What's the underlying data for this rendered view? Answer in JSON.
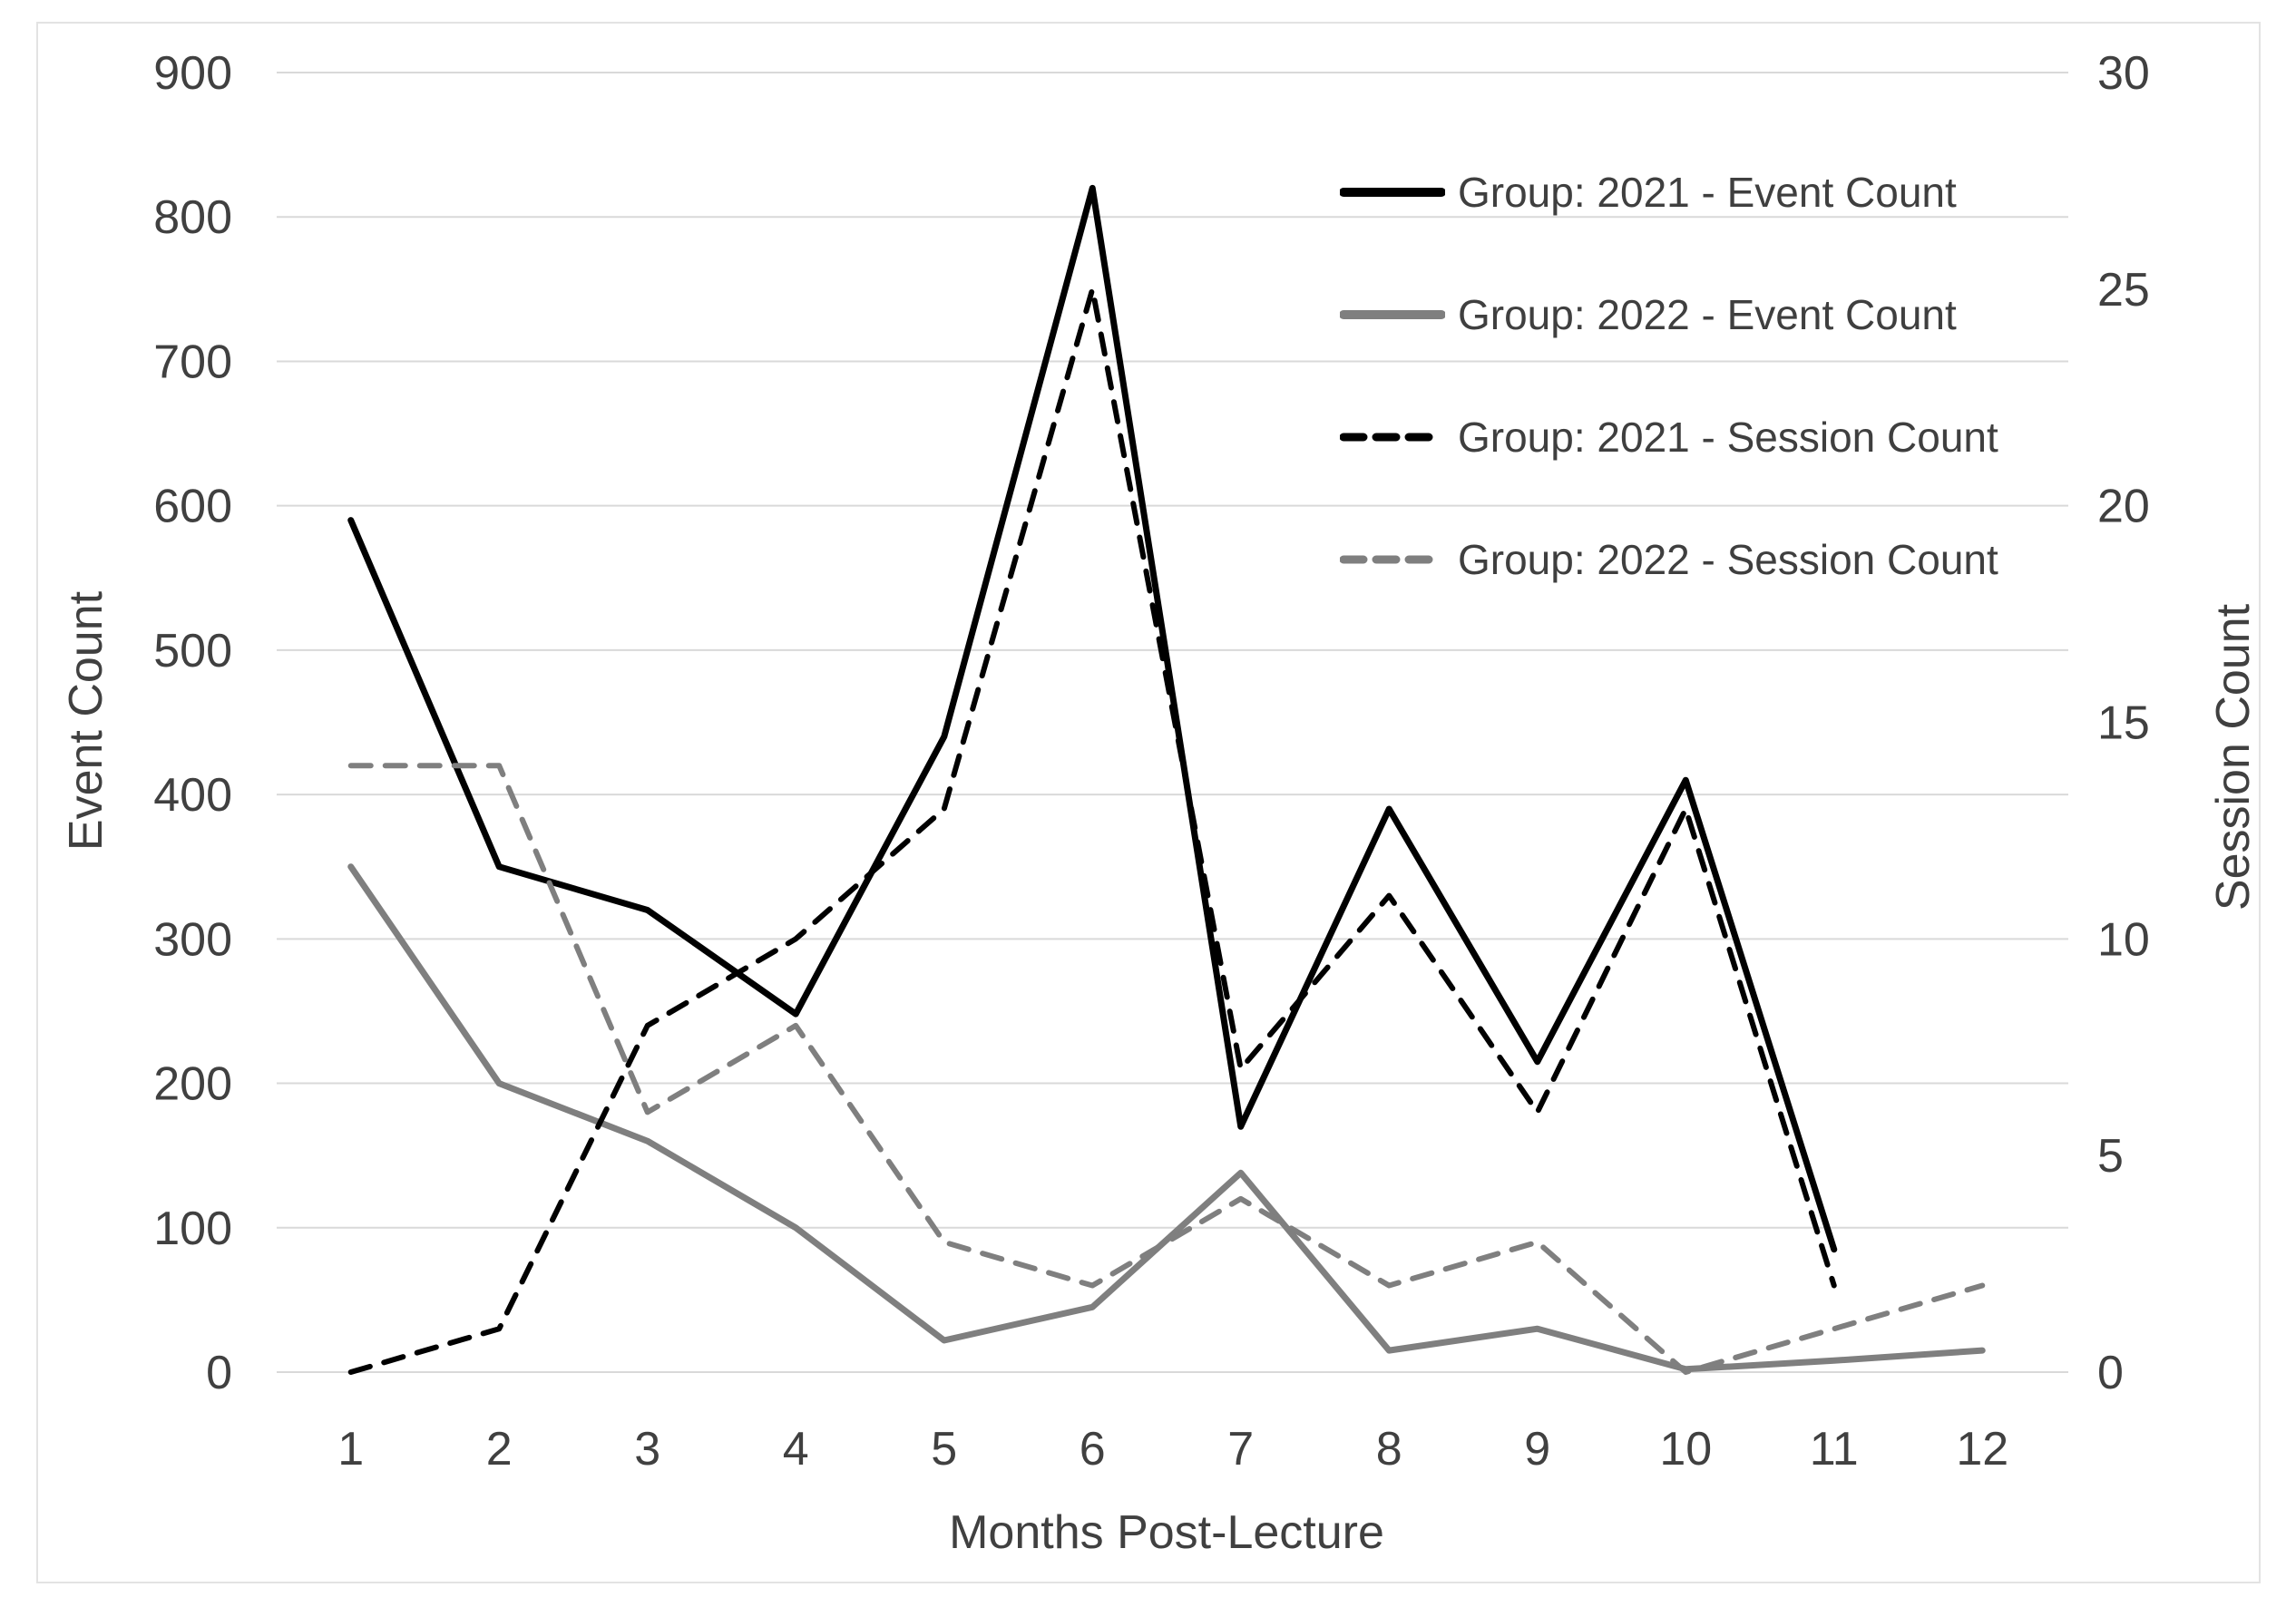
{
  "figure": {
    "background": "#ffffff",
    "border_color": "#e3e3e3",
    "gridline_color": "#d9d9d9",
    "tick_label_color": "#404040",
    "axis_title_color": "#404040",
    "legend_text_color": "#3f3f3f"
  },
  "chart_data": {
    "type": "line",
    "x": [
      1,
      2,
      3,
      4,
      5,
      6,
      7,
      8,
      9,
      10,
      11,
      12
    ],
    "xlabel": "Months Post-Lecture",
    "x_tick_labels": [
      "1",
      "2",
      "3",
      "4",
      "5",
      "6",
      "7",
      "8",
      "9",
      "10",
      "11",
      "12"
    ],
    "grid": true,
    "legend_position": "upper-right-inside",
    "left_axis": {
      "label": "Event Count",
      "min": 0,
      "max": 900,
      "step": 100,
      "tick_labels": [
        "0",
        "100",
        "200",
        "300",
        "400",
        "500",
        "600",
        "700",
        "800",
        "900"
      ]
    },
    "right_axis": {
      "label": "Session Count",
      "min": 0,
      "max": 30,
      "step": 5,
      "tick_labels": [
        "0",
        "5",
        "10",
        "15",
        "20",
        "25",
        "30"
      ]
    },
    "series": [
      {
        "name": "Group: 2021 - Event Count",
        "axis": "left",
        "color": "#000000",
        "style": "solid",
        "values": [
          590,
          350,
          320,
          248,
          440,
          820,
          170,
          390,
          215,
          410,
          85,
          null
        ]
      },
      {
        "name": "Group: 2022 - Event Count",
        "axis": "left",
        "color": "#7f7f7f",
        "style": "solid",
        "values": [
          350,
          200,
          160,
          100,
          22,
          45,
          138,
          15,
          30,
          2,
          8,
          15
        ]
      },
      {
        "name": "Group: 2021 - Session Count",
        "axis": "right",
        "color": "#000000",
        "style": "dashed",
        "values": [
          0,
          1,
          8,
          10,
          13,
          25,
          7,
          11,
          6,
          13,
          2,
          null
        ]
      },
      {
        "name": "Group: 2022 - Session Count",
        "axis": "right",
        "color": "#7f7f7f",
        "style": "dashed",
        "values": [
          14,
          14,
          6,
          8,
          3,
          2,
          4,
          2,
          3,
          0,
          1,
          2
        ]
      }
    ]
  }
}
